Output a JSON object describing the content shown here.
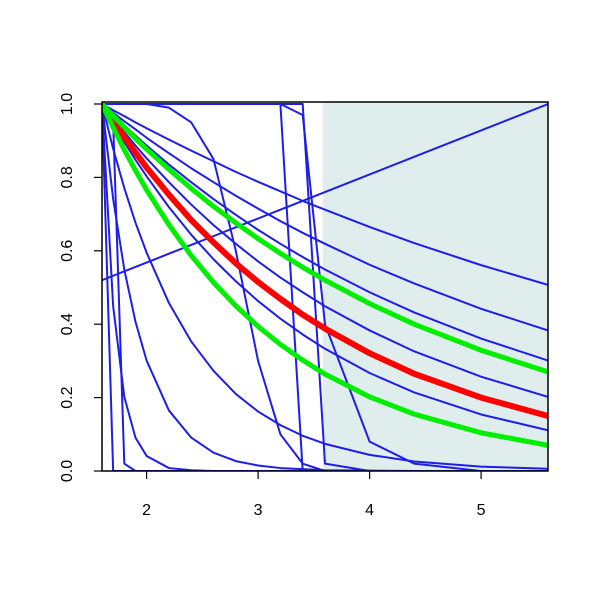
{
  "chart_data": {
    "type": "line",
    "x": [
      1.6,
      1.7,
      1.8,
      1.9,
      2.0,
      2.2,
      2.4,
      2.6,
      2.8,
      3.0,
      3.2,
      3.4,
      3.6,
      4.0,
      4.4,
      5.0,
      5.6
    ],
    "xlim": [
      1.6,
      5.6
    ],
    "ylim": [
      0,
      1
    ],
    "xticks": [
      2,
      3,
      4,
      5
    ],
    "yticks": [
      {
        "value": 0,
        "label": "0.0"
      },
      {
        "value": 0.2,
        "label": "0.2"
      },
      {
        "value": 0.4,
        "label": "0.4"
      },
      {
        "value": 0.6,
        "label": "0.6"
      },
      {
        "value": 0.8,
        "label": "0.8"
      },
      {
        "value": 1,
        "label": "1.0"
      }
    ],
    "shade_x": [
      3.58,
      5.6
    ],
    "shade_color": "#e0eded",
    "series": [
      {
        "color": "#1e1ee6",
        "width": 2,
        "values": [
          1,
          0.983,
          0.967,
          0.95,
          0.934,
          0.903,
          0.873,
          0.844,
          0.815,
          0.788,
          0.762,
          0.736,
          0.712,
          0.665,
          0.621,
          0.561,
          0.507
        ]
      },
      {
        "color": "#1e1ee6",
        "width": 2,
        "values": [
          1,
          0.976,
          0.953,
          0.931,
          0.908,
          0.866,
          0.825,
          0.787,
          0.75,
          0.715,
          0.681,
          0.649,
          0.619,
          0.562,
          0.511,
          0.442,
          0.383
        ]
      },
      {
        "color": "#1e1ee6",
        "width": 2,
        "values": [
          1,
          0.97,
          0.942,
          0.914,
          0.887,
          0.835,
          0.787,
          0.741,
          0.698,
          0.657,
          0.619,
          0.583,
          0.549,
          0.487,
          0.432,
          0.361,
          0.301
        ]
      },
      {
        "color": "#1e1ee6",
        "width": 2,
        "values": [
          1,
          0.961,
          0.923,
          0.887,
          0.852,
          0.787,
          0.726,
          0.67,
          0.619,
          0.571,
          0.527,
          0.487,
          0.449,
          0.383,
          0.326,
          0.257,
          0.202
        ]
      },
      {
        "color": "#1e1ee6",
        "width": 2,
        "values": [
          1,
          0.946,
          0.896,
          0.848,
          0.803,
          0.719,
          0.644,
          0.577,
          0.517,
          0.463,
          0.415,
          0.372,
          0.333,
          0.267,
          0.214,
          0.154,
          0.111
        ]
      },
      {
        "color": "#1e1ee6",
        "width": 2,
        "values": [
          1,
          0.878,
          0.771,
          0.677,
          0.595,
          0.458,
          0.353,
          0.273,
          0.21,
          0.162,
          0.125,
          0.096,
          0.074,
          0.044,
          0.026,
          0.012,
          0.006
        ]
      },
      {
        "color": "#1e1ee6",
        "width": 2,
        "values": [
          1,
          0.741,
          0.549,
          0.407,
          0.301,
          0.165,
          0.091,
          0.05,
          0.027,
          0.015,
          0.008,
          0.005,
          0.002,
          0.001,
          0,
          0,
          0
        ]
      },
      {
        "color": "#1e1ee6",
        "width": 2,
        "values": [
          1,
          0.449,
          0.202,
          0.091,
          0.041,
          0.008,
          0.002,
          0,
          0,
          0,
          0,
          0,
          0,
          0,
          0,
          0,
          0
        ]
      },
      {
        "color": "#1e1ee6",
        "width": 2,
        "values": [
          1,
          0,
          0,
          0,
          0,
          0,
          0,
          0,
          0,
          0,
          0,
          0,
          0,
          0,
          0,
          0,
          0
        ]
      },
      {
        "color": "#1e1ee6",
        "width": 2,
        "values": [
          1,
          0.95,
          0.02,
          0,
          0,
          0,
          0,
          0,
          0,
          0,
          0,
          0,
          0,
          0,
          0,
          0,
          0
        ]
      },
      {
        "color": "#1e1ee6",
        "width": 2,
        "values": [
          1,
          1,
          1,
          1,
          1,
          0.99,
          0.95,
          0.85,
          0.6,
          0.3,
          0.1,
          0.02,
          0,
          0,
          0,
          0,
          0
        ]
      },
      {
        "color": "#1e1ee6",
        "width": 2,
        "values": [
          1,
          1,
          1,
          1,
          1,
          1,
          1,
          1,
          1,
          1,
          1,
          0,
          0,
          0,
          0,
          0,
          0
        ]
      },
      {
        "color": "#1e1ee6",
        "width": 2,
        "values": [
          1,
          1,
          1,
          1,
          1,
          1,
          1,
          1,
          1,
          1,
          1,
          1,
          0.02,
          0,
          0,
          0,
          0
        ]
      },
      {
        "color": "#1e1ee6",
        "width": 2,
        "values": [
          1,
          1,
          1,
          1,
          1,
          1,
          1,
          1,
          1,
          1,
          1,
          0.97,
          0.4,
          0.08,
          0.02,
          0,
          0
        ]
      },
      {
        "color": "#1e1ee6",
        "width": 2,
        "values": [
          0.52,
          0.532,
          0.544,
          0.556,
          0.568,
          0.592,
          0.616,
          0.64,
          0.664,
          0.688,
          0.712,
          0.736,
          0.76,
          0.808,
          0.856,
          0.928,
          1.0
        ]
      },
      {
        "color": "#ff0000",
        "width": 6,
        "values": [
          1,
          0.954,
          0.91,
          0.868,
          0.827,
          0.753,
          0.684,
          0.623,
          0.566,
          0.515,
          0.469,
          0.426,
          0.388,
          0.321,
          0.265,
          0.2,
          0.15
        ]
      },
      {
        "color": "#00ee00",
        "width": 5,
        "values": [
          1,
          0.968,
          0.937,
          0.906,
          0.877,
          0.822,
          0.77,
          0.721,
          0.676,
          0.633,
          0.593,
          0.555,
          0.52,
          0.456,
          0.4,
          0.329,
          0.27
        ]
      },
      {
        "color": "#00ee00",
        "width": 5,
        "values": [
          1,
          0.936,
          0.875,
          0.819,
          0.766,
          0.671,
          0.587,
          0.514,
          0.45,
          0.394,
          0.345,
          0.302,
          0.264,
          0.202,
          0.155,
          0.104,
          0.07
        ]
      }
    ]
  }
}
